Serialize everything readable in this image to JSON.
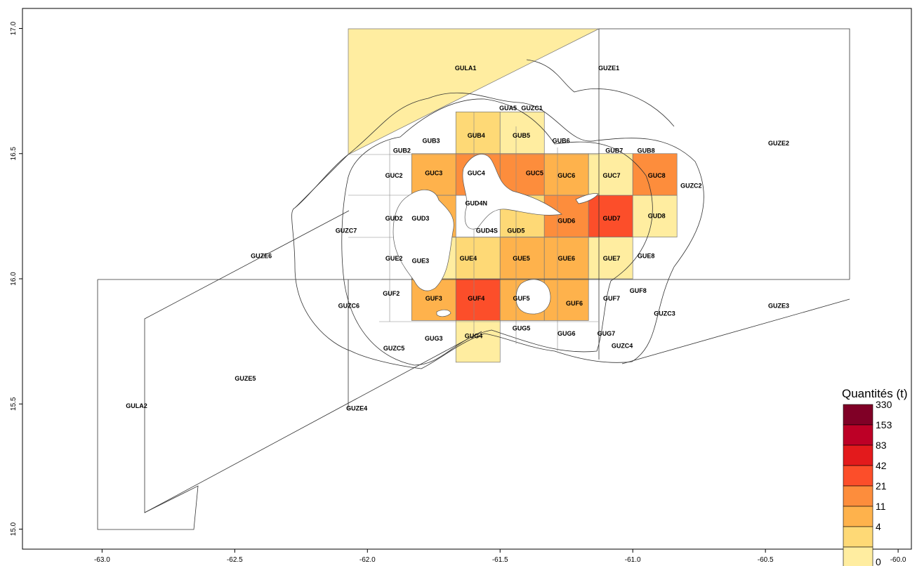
{
  "colors": {
    "legend_scale": [
      "#FFEDA0",
      "#FED976",
      "#FEB24C",
      "#FD8D3C",
      "#FC4E2A",
      "#E31A1C",
      "#BD0026",
      "#800026"
    ],
    "background": "#ffffff",
    "boundary": "#333333"
  },
  "axes": {
    "x_ticks": [
      "-63.0",
      "-62.5",
      "-62.0",
      "-61.5",
      "-61.0",
      "-60.5",
      "-60.0"
    ],
    "y_ticks": [
      "15.0",
      "15.5",
      "16.0",
      "16.5",
      "17.0"
    ],
    "xlim": [
      -63.3,
      -59.95
    ],
    "ylim": [
      14.92,
      17.08
    ]
  },
  "legend": {
    "title": "Quantités (t)",
    "breaks": [
      "330",
      "153",
      "83",
      "42",
      "21",
      "11",
      "4",
      "0"
    ],
    "placement": "bottom-right"
  },
  "zones": [
    {
      "label": "GULA1",
      "lon": -61.63,
      "lat": 16.84,
      "class": 0
    },
    {
      "label": "GUZE1",
      "lon": -61.09,
      "lat": 16.84,
      "class": null
    },
    {
      "label": "GUZE2",
      "lon": -60.45,
      "lat": 16.54,
      "class": null
    },
    {
      "label": "GUA5",
      "lon": -61.47,
      "lat": 16.68,
      "class": null
    },
    {
      "label": "GUZC1",
      "lon": -61.38,
      "lat": 16.68,
      "class": null
    },
    {
      "label": "GUB2",
      "lon": -61.87,
      "lat": 16.51,
      "class": null
    },
    {
      "label": "GUB3",
      "lon": -61.76,
      "lat": 16.55,
      "class": null
    },
    {
      "label": "GUB4",
      "lon": -61.59,
      "lat": 16.57,
      "class": 1
    },
    {
      "label": "GUB5",
      "lon": -61.42,
      "lat": 16.57,
      "class": 0
    },
    {
      "label": "GUB6",
      "lon": -61.27,
      "lat": 16.55,
      "class": null
    },
    {
      "label": "GUB7",
      "lon": -61.07,
      "lat": 16.51,
      "class": null
    },
    {
      "label": "GUB8",
      "lon": -60.95,
      "lat": 16.51,
      "class": null
    },
    {
      "label": "GUC2",
      "lon": -61.9,
      "lat": 16.41,
      "class": null
    },
    {
      "label": "GUC3",
      "lon": -61.75,
      "lat": 16.42,
      "class": 2
    },
    {
      "label": "GUC4",
      "lon": -61.59,
      "lat": 16.42,
      "class": 3
    },
    {
      "label": "GUC5",
      "lon": -61.37,
      "lat": 16.42,
      "class": 3
    },
    {
      "label": "GUC6",
      "lon": -61.25,
      "lat": 16.41,
      "class": 2
    },
    {
      "label": "GUC7",
      "lon": -61.08,
      "lat": 16.41,
      "class": 0
    },
    {
      "label": "GUC8",
      "lon": -60.91,
      "lat": 16.41,
      "class": 3
    },
    {
      "label": "GUZC2",
      "lon": -60.78,
      "lat": 16.37,
      "class": null
    },
    {
      "label": "GUD2",
      "lon": -61.9,
      "lat": 16.24,
      "class": null
    },
    {
      "label": "GUD3",
      "lon": -61.8,
      "lat": 16.24,
      "class": 2
    },
    {
      "label": "GUD4N",
      "lon": -61.59,
      "lat": 16.3,
      "class": null
    },
    {
      "label": "GUD4S",
      "lon": -61.55,
      "lat": 16.19,
      "class": null
    },
    {
      "label": "GUD5",
      "lon": -61.44,
      "lat": 16.19,
      "class": 1
    },
    {
      "label": "GUD6",
      "lon": -61.25,
      "lat": 16.23,
      "class": 3
    },
    {
      "label": "GUD7",
      "lon": -61.08,
      "lat": 16.24,
      "class": 4
    },
    {
      "label": "GUD8",
      "lon": -60.91,
      "lat": 16.25,
      "class": 0
    },
    {
      "label": "GUZC7",
      "lon": -62.08,
      "lat": 16.19,
      "class": null
    },
    {
      "label": "GUZE6",
      "lon": -62.4,
      "lat": 16.09,
      "class": null
    },
    {
      "label": "GUE2",
      "lon": -61.9,
      "lat": 16.08,
      "class": null
    },
    {
      "label": "GUE3",
      "lon": -61.8,
      "lat": 16.07,
      "class": 0
    },
    {
      "label": "GUE4",
      "lon": -61.62,
      "lat": 16.08,
      "class": 1
    },
    {
      "label": "GUE5",
      "lon": -61.42,
      "lat": 16.08,
      "class": 2
    },
    {
      "label": "GUE6",
      "lon": -61.25,
      "lat": 16.08,
      "class": 2
    },
    {
      "label": "GUE7",
      "lon": -61.08,
      "lat": 16.08,
      "class": 0
    },
    {
      "label": "GUE8",
      "lon": -60.95,
      "lat": 16.09,
      "class": null
    },
    {
      "label": "GUF2",
      "lon": -61.91,
      "lat": 15.94,
      "class": null
    },
    {
      "label": "GUF3",
      "lon": -61.75,
      "lat": 15.92,
      "class": 2
    },
    {
      "label": "GUF4",
      "lon": -61.59,
      "lat": 15.92,
      "class": 4
    },
    {
      "label": "GUF5",
      "lon": -61.42,
      "lat": 15.92,
      "class": 2
    },
    {
      "label": "GUF6",
      "lon": -61.22,
      "lat": 15.9,
      "class": 2
    },
    {
      "label": "GUF7",
      "lon": -61.08,
      "lat": 15.92,
      "class": null
    },
    {
      "label": "GUF8",
      "lon": -60.98,
      "lat": 15.95,
      "class": null
    },
    {
      "label": "GUZC6",
      "lon": -62.07,
      "lat": 15.89,
      "class": null
    },
    {
      "label": "GUZC3",
      "lon": -60.88,
      "lat": 15.86,
      "class": null
    },
    {
      "label": "GUZE3",
      "lon": -60.45,
      "lat": 15.89,
      "class": null
    },
    {
      "label": "GUG3",
      "lon": -61.75,
      "lat": 15.76,
      "class": null
    },
    {
      "label": "GUG4",
      "lon": -61.6,
      "lat": 15.77,
      "class": 0
    },
    {
      "label": "GUG5",
      "lon": -61.42,
      "lat": 15.8,
      "class": null
    },
    {
      "label": "GUG6",
      "lon": -61.25,
      "lat": 15.78,
      "class": null
    },
    {
      "label": "GUG7",
      "lon": -61.1,
      "lat": 15.78,
      "class": null
    },
    {
      "label": "GUZC4",
      "lon": -61.04,
      "lat": 15.73,
      "class": null
    },
    {
      "label": "GUZC5",
      "lon": -61.9,
      "lat": 15.72,
      "class": null
    },
    {
      "label": "GUZE5",
      "lon": -62.46,
      "lat": 15.6,
      "class": null
    },
    {
      "label": "GUZE4",
      "lon": -62.04,
      "lat": 15.48,
      "class": null
    },
    {
      "label": "GULA2",
      "lon": -62.87,
      "lat": 15.49,
      "class": null
    }
  ]
}
